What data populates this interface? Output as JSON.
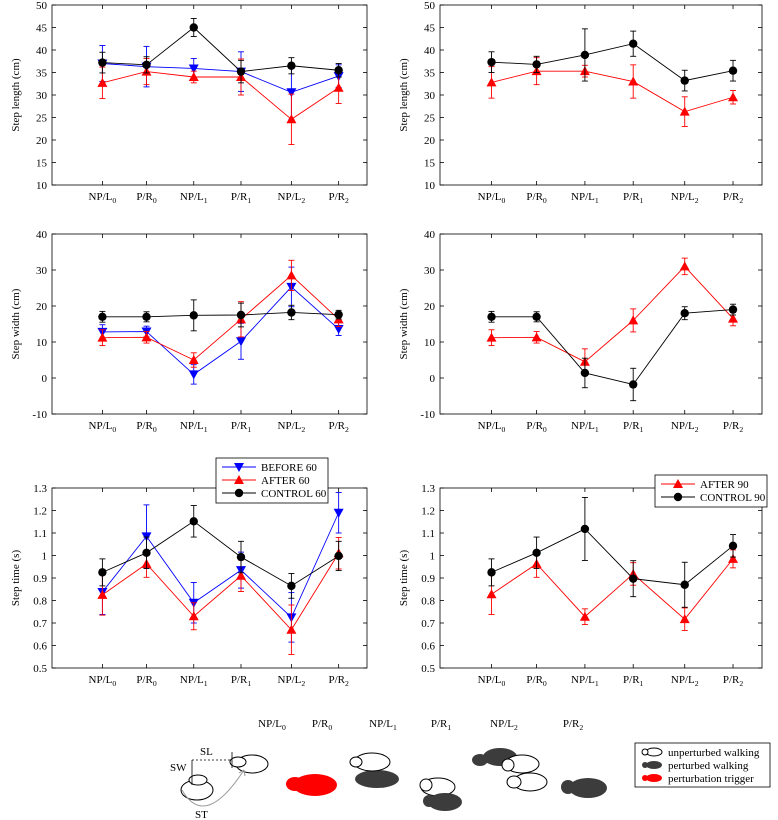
{
  "labels": {
    "tick_labels": [
      {
        "base": "NP/L",
        "sub": "0"
      },
      {
        "base": "P/R",
        "sub": "0"
      },
      {
        "base": "NP/L",
        "sub": "1"
      },
      {
        "base": "P/R",
        "sub": "1"
      },
      {
        "base": "NP/L",
        "sub": "2"
      },
      {
        "base": "P/R",
        "sub": "2"
      }
    ]
  },
  "colors": {
    "before": "#0000ff",
    "after": "#ff0000",
    "control": "#000000"
  },
  "chart_data": [
    {
      "type": "line",
      "id": "sl60",
      "ylabel": "Step length (cm)",
      "ylim": [
        10,
        50
      ],
      "yticks": [
        10,
        15,
        20,
        25,
        30,
        35,
        40,
        45,
        50
      ],
      "categories": [
        "NP/L0",
        "P/R0",
        "NP/L1",
        "P/R1",
        "NP/L2",
        "P/R2"
      ],
      "series": [
        {
          "name": "BEFORE 60",
          "key": "before",
          "marker": "tri-down",
          "values": [
            37.0,
            36.3,
            35.9,
            35.2,
            30.6,
            34.2
          ],
          "errors": [
            4.0,
            4.5,
            2.2,
            4.4,
            6.0,
            2.5
          ]
        },
        {
          "name": "AFTER 60",
          "key": "after",
          "marker": "tri-up",
          "values": [
            32.7,
            35.2,
            34.0,
            34.0,
            24.6,
            31.6
          ],
          "errors": [
            3.5,
            2.9,
            1.3,
            4.0,
            5.6,
            3.5
          ]
        },
        {
          "name": "CONTROL 60",
          "key": "control",
          "marker": "circle",
          "values": [
            37.2,
            36.7,
            45.0,
            35.2,
            36.5,
            35.5
          ],
          "errors": [
            2.3,
            1.8,
            2.0,
            2.5,
            1.8,
            1.5
          ]
        }
      ]
    },
    {
      "type": "line",
      "id": "sl90",
      "ylabel": "Step length (cm)",
      "ylim": [
        10,
        50
      ],
      "yticks": [
        10,
        15,
        20,
        25,
        30,
        35,
        40,
        45,
        50
      ],
      "categories": [
        "NP/L0",
        "P/R0",
        "NP/L1",
        "P/R1",
        "NP/L2",
        "P/R2"
      ],
      "series": [
        {
          "name": "AFTER 90",
          "key": "after",
          "marker": "tri-up",
          "values": [
            32.8,
            35.3,
            35.3,
            33.0,
            26.3,
            29.5
          ],
          "errors": [
            3.5,
            3.0,
            1.3,
            3.7,
            3.3,
            1.5
          ]
        },
        {
          "name": "CONTROL 90",
          "key": "control",
          "marker": "circle",
          "values": [
            37.3,
            36.8,
            38.9,
            41.4,
            33.2,
            35.4
          ],
          "errors": [
            2.3,
            1.8,
            5.8,
            2.8,
            2.3,
            2.3
          ]
        }
      ]
    },
    {
      "type": "line",
      "id": "sw60",
      "ylabel": "Step width (cm)",
      "ylim": [
        -10,
        40
      ],
      "yticks": [
        -10,
        0,
        10,
        20,
        30,
        40
      ],
      "categories": [
        "NP/L0",
        "P/R0",
        "NP/L1",
        "P/R1",
        "NP/L2",
        "P/R2"
      ],
      "series": [
        {
          "name": "BEFORE 60",
          "key": "before",
          "marker": "tri-down",
          "values": [
            12.8,
            12.9,
            1.0,
            10.2,
            25.3,
            13.6
          ],
          "errors": [
            2.0,
            1.5,
            2.7,
            5.0,
            5.5,
            1.8
          ]
        },
        {
          "name": "AFTER 60",
          "key": "after",
          "marker": "tri-up",
          "values": [
            11.2,
            11.3,
            5.0,
            16.3,
            28.5,
            16.3
          ],
          "errors": [
            2.2,
            1.6,
            2.0,
            4.9,
            4.2,
            2.0
          ]
        },
        {
          "name": "CONTROL 60",
          "key": "control",
          "marker": "circle",
          "values": [
            17.0,
            17.0,
            17.4,
            17.5,
            18.2,
            17.6
          ],
          "errors": [
            1.5,
            1.4,
            4.3,
            3.3,
            2.0,
            1.2
          ]
        }
      ]
    },
    {
      "type": "line",
      "id": "sw90",
      "ylabel": "Step width (cm)",
      "ylim": [
        -10,
        40
      ],
      "yticks": [
        -10,
        0,
        10,
        20,
        30,
        40
      ],
      "categories": [
        "NP/L0",
        "P/R0",
        "NP/L1",
        "P/R1",
        "NP/L2",
        "P/R2"
      ],
      "series": [
        {
          "name": "AFTER 90",
          "key": "after",
          "marker": "tri-up",
          "values": [
            11.2,
            11.3,
            4.5,
            16.0,
            31.0,
            16.5
          ],
          "errors": [
            2.2,
            1.6,
            3.6,
            3.2,
            2.3,
            2.0
          ]
        },
        {
          "name": "CONTROL 90",
          "key": "control",
          "marker": "circle",
          "values": [
            17.0,
            17.0,
            1.4,
            -1.8,
            18.0,
            19.0
          ],
          "errors": [
            1.5,
            1.4,
            4.1,
            4.5,
            1.8,
            1.5
          ]
        }
      ]
    },
    {
      "type": "line",
      "id": "st60",
      "ylabel": "Step time (s)",
      "ylim": [
        0.5,
        1.3
      ],
      "yticks": [
        0.5,
        0.6,
        0.7,
        0.8,
        0.9,
        1.0,
        1.1,
        1.2,
        1.3
      ],
      "categories": [
        "NP/L0",
        "P/R0",
        "NP/L1",
        "P/R1",
        "NP/L2",
        "P/R2"
      ],
      "legend": "top-center",
      "series": [
        {
          "name": "BEFORE 60",
          "key": "before",
          "marker": "tri-down",
          "values": [
            0.838,
            1.085,
            0.79,
            0.935,
            0.725,
            1.19
          ],
          "errors": [
            0.1,
            0.14,
            0.09,
            0.08,
            0.11,
            0.09
          ]
        },
        {
          "name": "AFTER 60",
          "key": "after",
          "marker": "tri-up",
          "values": [
            0.825,
            0.963,
            0.73,
            0.91,
            0.67,
            1.01
          ],
          "errors": [
            0.09,
            0.06,
            0.06,
            0.07,
            0.11,
            0.07
          ]
        },
        {
          "name": "CONTROL 60",
          "key": "control",
          "marker": "circle",
          "values": [
            0.925,
            1.012,
            1.152,
            0.993,
            0.865,
            0.998
          ],
          "errors": [
            0.06,
            0.07,
            0.07,
            0.07,
            0.055,
            0.065
          ]
        }
      ]
    },
    {
      "type": "line",
      "id": "st90",
      "ylabel": "Step time (s)",
      "ylim": [
        0.5,
        1.3
      ],
      "yticks": [
        0.5,
        0.6,
        0.7,
        0.8,
        0.9,
        1.0,
        1.1,
        1.2,
        1.3
      ],
      "categories": [
        "NP/L0",
        "P/R0",
        "NP/L1",
        "P/R1",
        "NP/L2",
        "P/R2"
      ],
      "legend": "top-right",
      "series": [
        {
          "name": "AFTER 90",
          "key": "after",
          "marker": "tri-up",
          "values": [
            0.828,
            0.963,
            0.728,
            0.918,
            0.717,
            0.985
          ],
          "errors": [
            0.09,
            0.06,
            0.035,
            0.05,
            0.05,
            0.04
          ]
        },
        {
          "name": "CONTROL 90",
          "key": "control",
          "marker": "circle",
          "values": [
            0.925,
            1.012,
            1.118,
            0.897,
            0.87,
            1.043
          ],
          "errors": [
            0.06,
            0.07,
            0.14,
            0.08,
            0.1,
            0.05
          ]
        }
      ]
    }
  ],
  "diagram": {
    "stage_labels": [
      {
        "base": "NP/L",
        "sub": "0"
      },
      {
        "base": "P/R",
        "sub": "0"
      },
      {
        "base": "NP/L",
        "sub": "1"
      },
      {
        "base": "P/R",
        "sub": "1"
      },
      {
        "base": "NP/L",
        "sub": "2"
      },
      {
        "base": "P/R",
        "sub": "2"
      }
    ],
    "measure_labels": {
      "sl": "SL",
      "sw": "SW",
      "st": "ST"
    },
    "legend": [
      {
        "key": "unperturbed",
        "label": "unperturbed walking"
      },
      {
        "key": "perturbed",
        "label": "perturbed walking"
      },
      {
        "key": "trigger",
        "label": "perturbation trigger"
      }
    ]
  }
}
